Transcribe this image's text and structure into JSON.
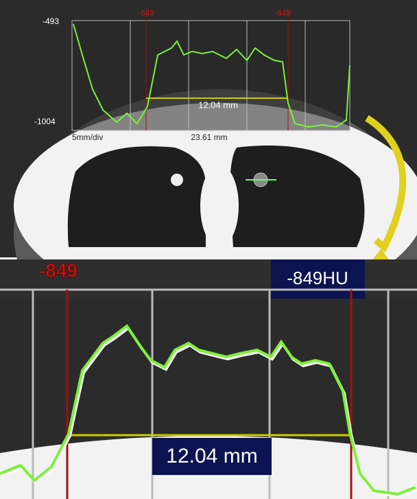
{
  "top_panel": {
    "y_max_label": "-493",
    "y_min_label": "-1004",
    "cursor_labels": [
      "-849",
      "-849"
    ],
    "scale_label": "5mm/div",
    "total_length": "23.61 mm",
    "width_label": "12.04 mm"
  },
  "callout": "-849HU",
  "bottom_panel": {
    "cursor_label": "-849",
    "width_label": "12.04 mm"
  }
}
